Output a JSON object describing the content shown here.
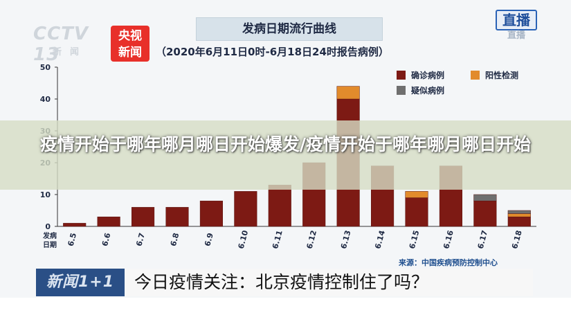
{
  "header": {
    "channel_logo": "CCTV 13",
    "channel_sub": "新闻",
    "news_badge_line1": "央视",
    "news_badge_line2": "新闻",
    "live_label": "直播",
    "live_sub": "直播"
  },
  "overlay": {
    "headline": "疫情开始于哪年哪月哪日开始爆发/疫情开始于哪年哪月哪日开始"
  },
  "footer": {
    "source": "来源：中国疾病预防控制中心",
    "ticker_logo": "新闻1+1",
    "ticker_text": "今日疫情关注：北京疫情控制住了吗？"
  },
  "chart_data": {
    "type": "bar",
    "title": "发病日期流行曲线",
    "subtitle": "（2020年6月11日0时-6月18日24时报告病例）",
    "xlabel": "发病日期",
    "ylabel": "",
    "categories": [
      "6.5",
      "6.6",
      "6.7",
      "6.8",
      "6.9",
      "6.10",
      "6.11",
      "6.12",
      "6.13",
      "6.14",
      "6.15",
      "6.16",
      "6.17",
      "6.18"
    ],
    "ylim": [
      0,
      50
    ],
    "yticks": [
      "0",
      "10",
      "20",
      "30",
      "40",
      "50"
    ],
    "stacked": true,
    "series": [
      {
        "name": "确诊病例",
        "color": "#7d1a14",
        "values": [
          1,
          3,
          6,
          6,
          8,
          11,
          13,
          20,
          40,
          19,
          9,
          19,
          8,
          3
        ]
      },
      {
        "name": "阳性检测",
        "color": "#e28b2c",
        "values": [
          0,
          0,
          0,
          0,
          0,
          0,
          0,
          0,
          4,
          0,
          2,
          0,
          0,
          1
        ]
      },
      {
        "name": "疑似病例",
        "color": "#6f6f6f",
        "values": [
          0,
          0,
          0,
          0,
          0,
          0,
          0,
          0,
          0,
          0,
          0,
          0,
          2,
          1
        ]
      }
    ],
    "legend_position": "top-right",
    "grid": false
  }
}
